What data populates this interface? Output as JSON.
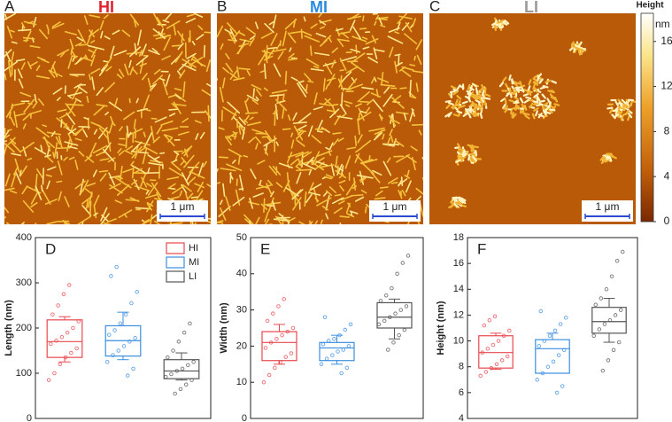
{
  "panels": [
    {
      "letter": "A",
      "label": "HI",
      "color": "#e3222b",
      "scale": "1 μm",
      "style": "dense"
    },
    {
      "letter": "B",
      "label": "MI",
      "color": "#2b8be0",
      "scale": "1 μm",
      "style": "dense"
    },
    {
      "letter": "C",
      "label": "LI",
      "color": "#9a9a9a",
      "scale": "1 μm",
      "style": "sparse"
    }
  ],
  "colorbar": {
    "title": "Height",
    "unit": "nm",
    "lim": [
      0,
      18.5
    ],
    "ticks": [
      0,
      4,
      8,
      12,
      16
    ]
  },
  "chart_data": [
    {
      "type": "box",
      "letter": "D",
      "ylabel": "Length (nm)",
      "ylim": [
        0,
        400
      ],
      "yticks": [
        0,
        100,
        200,
        300,
        400
      ],
      "legend": "top-right",
      "series": [
        {
          "name": "HI",
          "color": "#e8474d",
          "q1": 135,
          "median": 170,
          "q3": 218,
          "whisker_low": 125,
          "whisker_high": 225,
          "points": [
            85,
            100,
            120,
            135,
            145,
            155,
            165,
            172,
            180,
            190,
            200,
            215,
            230,
            250,
            275,
            295
          ]
        },
        {
          "name": "MI",
          "color": "#3b8fe0",
          "q1": 138,
          "median": 172,
          "q3": 205,
          "whisker_low": 130,
          "whisker_high": 235,
          "points": [
            95,
            110,
            125,
            140,
            150,
            160,
            170,
            178,
            185,
            195,
            210,
            230,
            255,
            280,
            315,
            335
          ]
        },
        {
          "name": "LI",
          "color": "#555555",
          "q1": 88,
          "median": 105,
          "q3": 130,
          "whisker_low": 85,
          "whisker_high": 145,
          "points": [
            55,
            65,
            75,
            85,
            92,
            98,
            105,
            110,
            118,
            125,
            135,
            150,
            170,
            190,
            210
          ]
        }
      ]
    },
    {
      "type": "box",
      "letter": "E",
      "ylabel": "Width (nm)",
      "ylim": [
        0,
        50
      ],
      "yticks": [
        0,
        10,
        20,
        30,
        40,
        50
      ],
      "series": [
        {
          "color": "#e8474d",
          "q1": 16,
          "median": 21,
          "q3": 24,
          "whisker_low": 15,
          "whisker_high": 26,
          "points": [
            10,
            12,
            14,
            15.5,
            17,
            18,
            19.5,
            21,
            22,
            23,
            24,
            25,
            27,
            29,
            31,
            33
          ]
        },
        {
          "color": "#3b8fe0",
          "q1": 16,
          "median": 19.5,
          "q3": 21,
          "whisker_low": 15,
          "whisker_high": 23,
          "points": [
            12.5,
            14,
            15,
            16.5,
            17.5,
            18.5,
            19,
            20,
            20.5,
            21.5,
            22,
            23,
            24.5,
            26,
            28
          ]
        },
        {
          "color": "#555555",
          "q1": 25,
          "median": 28,
          "q3": 32,
          "whisker_low": 22,
          "whisker_high": 33,
          "points": [
            19,
            21,
            23,
            24.5,
            26,
            27,
            28,
            29,
            30,
            31,
            32.5,
            34,
            36,
            40,
            43,
            45
          ]
        }
      ]
    },
    {
      "type": "box",
      "letter": "F",
      "ylabel": "Height (nm)",
      "ylim": [
        4,
        18
      ],
      "yticks": [
        4,
        6,
        8,
        10,
        12,
        14,
        16,
        18
      ],
      "series": [
        {
          "color": "#e8474d",
          "q1": 7.9,
          "median": 9.1,
          "q3": 10.4,
          "whisker_low": 7.8,
          "whisker_high": 10.6,
          "points": [
            7.3,
            7.6,
            7.9,
            8.2,
            8.5,
            8.8,
            9.1,
            9.4,
            9.7,
            10,
            10.4,
            10.8,
            11.2,
            11.6,
            11.9
          ]
        },
        {
          "color": "#3b8fe0",
          "q1": 7.5,
          "median": 9.4,
          "q3": 10.1,
          "whisker_low": 7.5,
          "whisker_high": 10.6,
          "points": [
            6,
            6.5,
            7,
            7.5,
            8,
            8.4,
            8.9,
            9.3,
            9.6,
            10,
            10.4,
            10.8,
            11.3,
            11.8,
            12.3
          ]
        },
        {
          "color": "#555555",
          "q1": 10.6,
          "median": 11.5,
          "q3": 12.6,
          "whisker_low": 9.9,
          "whisker_high": 13.3,
          "points": [
            7.7,
            8.5,
            9.3,
            9.9,
            10.4,
            10.9,
            11.3,
            11.6,
            12,
            12.4,
            12.8,
            13.3,
            14,
            15,
            16.2,
            16.9
          ]
        }
      ]
    }
  ]
}
